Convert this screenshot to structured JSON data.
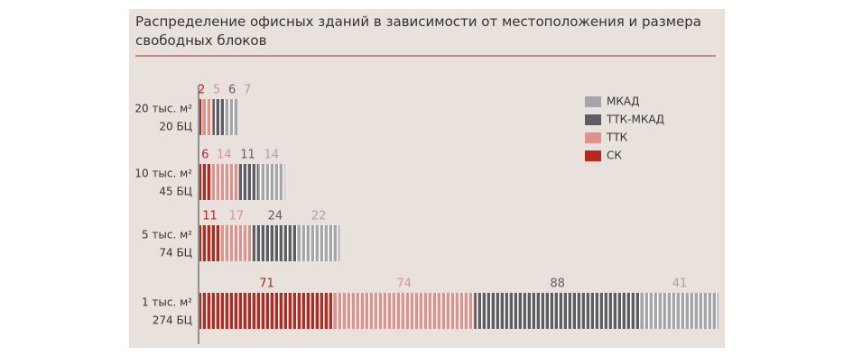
{
  "chart_data": {
    "type": "stacked-bar",
    "title": "Распределение офисных зданий в зависимости от местоположения и размера свободных блоков",
    "categories": [
      "20 тыс. м²",
      "10 тыс. м²",
      "5  тыс. м²",
      "1 тыс. м²"
    ],
    "category_sublabels": [
      "20 БЦ",
      "45 БЦ",
      "74 БЦ",
      "274 БЦ"
    ],
    "series": [
      {
        "name": "СК",
        "color": "#b8281c",
        "values": [
          2,
          6,
          11,
          71
        ]
      },
      {
        "name": "ТТК",
        "color": "#e0928a",
        "values": [
          5,
          14,
          17,
          74
        ]
      },
      {
        "name": "ТТК-МКАД",
        "color": "#5e5e62",
        "values": [
          6,
          11,
          24,
          88
        ]
      },
      {
        "name": "МКАД",
        "color": "#a5a5a9",
        "values": [
          7,
          14,
          22,
          41
        ]
      }
    ],
    "legend": "top-right"
  }
}
